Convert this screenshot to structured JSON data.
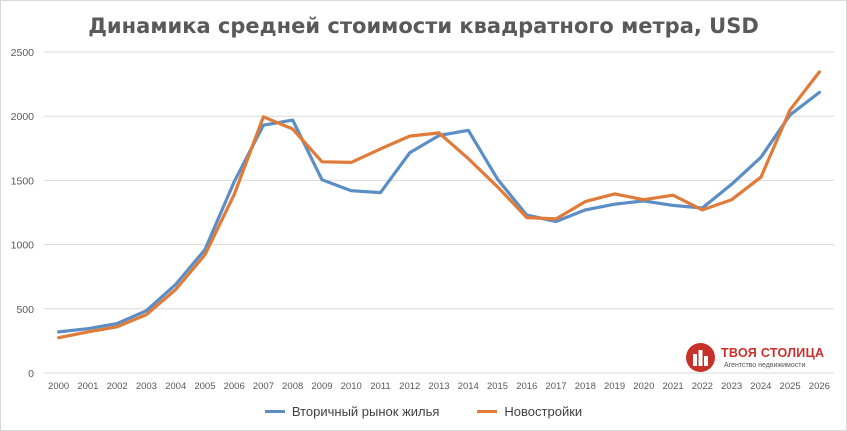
{
  "chart_data": {
    "type": "line",
    "title": "Динамика средней стоимости квадратного метра, USD",
    "xlabel": "",
    "ylabel": "",
    "ylim": [
      0,
      2500
    ],
    "yticks": [
      0,
      500,
      1000,
      1500,
      2000,
      2500
    ],
    "grid": true,
    "legend_position": "bottom",
    "categories": [
      "2000",
      "2001",
      "2002",
      "2003",
      "2004",
      "2005",
      "2006",
      "2007",
      "2008",
      "2009",
      "2010",
      "2011",
      "2012",
      "2013",
      "2014",
      "2015",
      "2016",
      "2017",
      "2018",
      "2019",
      "2020",
      "2021",
      "2022",
      "2023",
      "2024",
      "2025",
      "2026"
    ],
    "series": [
      {
        "name": "Вторичный рынок жилья",
        "color": "#5b8ec4",
        "values": [
          320,
          345,
          385,
          485,
          690,
          960,
          1490,
          1930,
          1970,
          1505,
          1420,
          1405,
          1715,
          1850,
          1890,
          1510,
          1230,
          1180,
          1270,
          1315,
          1340,
          1305,
          1285,
          1470,
          1680,
          2010,
          2185
        ]
      },
      {
        "name": "Новостройки",
        "color": "#e07b39",
        "values": [
          275,
          320,
          360,
          455,
          650,
          920,
          1390,
          1995,
          1900,
          1645,
          1640,
          1745,
          1845,
          1870,
          1670,
          1450,
          1210,
          1200,
          1335,
          1395,
          1350,
          1385,
          1270,
          1350,
          1525,
          2050,
          2345
        ]
      }
    ]
  },
  "logo": {
    "name": "ТВОЯ СТОЛИЦА",
    "tagline": "Агентство недвижимости"
  }
}
